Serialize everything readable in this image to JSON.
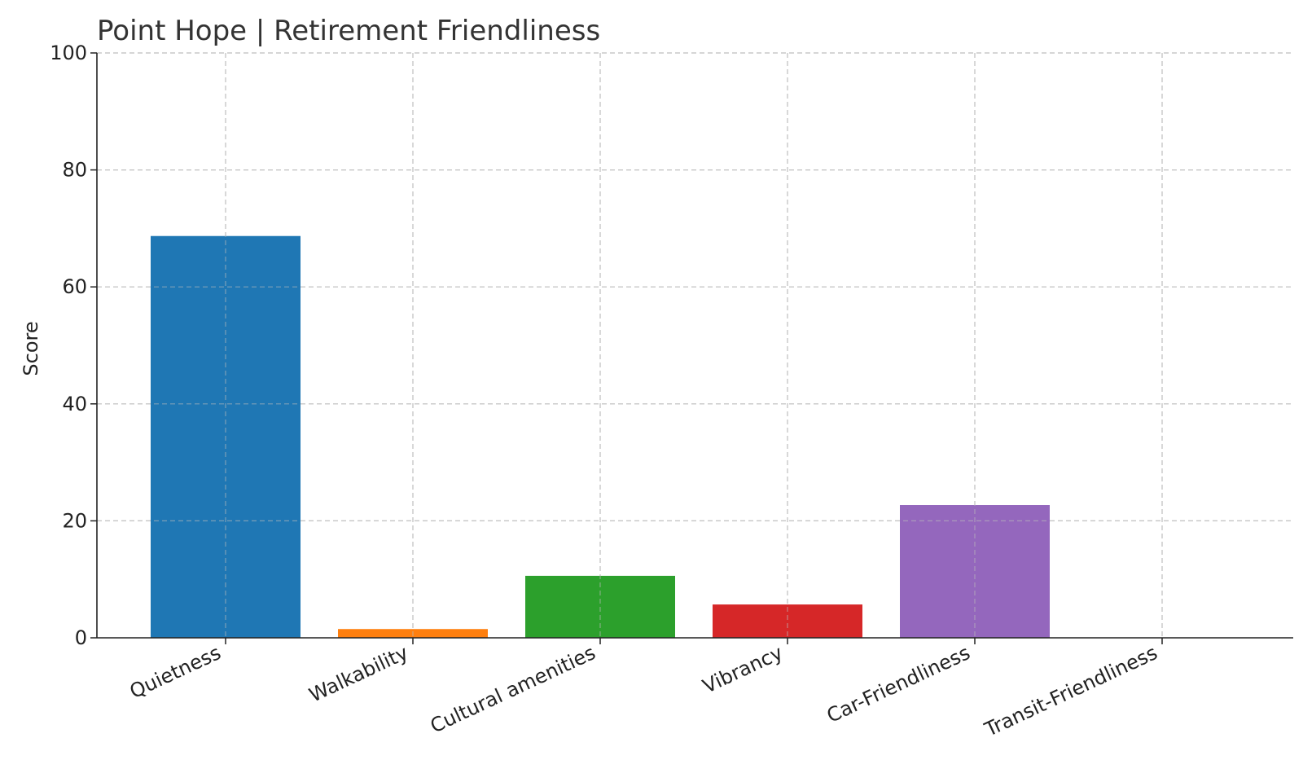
{
  "chart_data": {
    "type": "bar",
    "title": "Point Hope | Retirement Friendliness",
    "xlabel": "",
    "ylabel": "Score",
    "ylim": [
      0,
      100
    ],
    "yticks": [
      0,
      20,
      40,
      60,
      80,
      100
    ],
    "grid": true,
    "categories": [
      "Quietness",
      "Walkability",
      "Cultural amenities",
      "Vibrancy",
      "Car-Friendliness",
      "Transit-Friendliness"
    ],
    "values": [
      68.7,
      1.5,
      10.6,
      5.7,
      22.7,
      0
    ],
    "colors": [
      "#1f77b4",
      "#ff7f0e",
      "#2ca02c",
      "#d62728",
      "#9467bd",
      "#8c564b"
    ]
  }
}
